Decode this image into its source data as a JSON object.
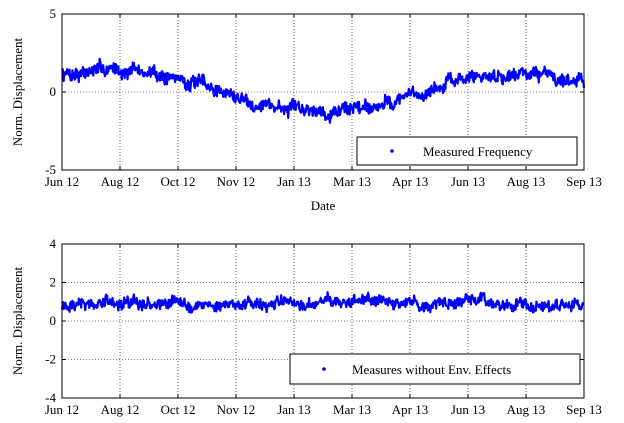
{
  "chart_data": [
    {
      "type": "line",
      "xlabel": "Date",
      "ylabel": "Norm. Displacement",
      "ylim": [
        -5,
        5
      ],
      "yticks": [
        "5",
        "0",
        "-5"
      ],
      "xticks": [
        "Jun 12",
        "Aug 12",
        "Oct 12",
        "Nov 12",
        "Jan 13",
        "Mar 13",
        "Apr 13",
        "Jun 13",
        "Aug 13",
        "Sep 13"
      ],
      "grid": true,
      "legend_position": "bottom-right",
      "series": [
        {
          "name": "Measured Frequency",
          "color": "#0000ff",
          "trend": [
            {
              "x": "Jun 12",
              "y": 1.2
            },
            {
              "x": "Aug 12",
              "y": 1.5
            },
            {
              "x": "Oct 12",
              "y": 0.9
            },
            {
              "x": "Nov 12",
              "y": -0.3
            },
            {
              "x": "Jan 13",
              "y": -1.2
            },
            {
              "x": "Mar 13",
              "y": -1.0
            },
            {
              "x": "Apr 13",
              "y": -0.3
            },
            {
              "x": "Jun 13",
              "y": 0.9
            },
            {
              "x": "Aug 13",
              "y": 1.3
            },
            {
              "x": "Sep 13",
              "y": 0.8
            }
          ],
          "noise_amplitude": 0.5
        }
      ]
    },
    {
      "type": "line",
      "xlabel": "",
      "ylabel": "Norm. Displacement",
      "ylim": [
        -4,
        4
      ],
      "yticks": [
        "4",
        "2",
        "0",
        "-2",
        "-4"
      ],
      "xticks": [
        "Jun 12",
        "Aug 12",
        "Oct 12",
        "Nov 12",
        "Jan 13",
        "Mar 13",
        "Apr 13",
        "Jun 13",
        "Aug 13",
        "Sep 13"
      ],
      "grid": true,
      "legend_position": "bottom-right",
      "series": [
        {
          "name": "Measures without Env. Effects",
          "color": "#0000ff",
          "trend": [
            {
              "x": "Jun 12",
              "y": 0.9
            },
            {
              "x": "Sep 13",
              "y": 0.9
            }
          ],
          "noise_amplitude": 0.35
        }
      ]
    }
  ]
}
